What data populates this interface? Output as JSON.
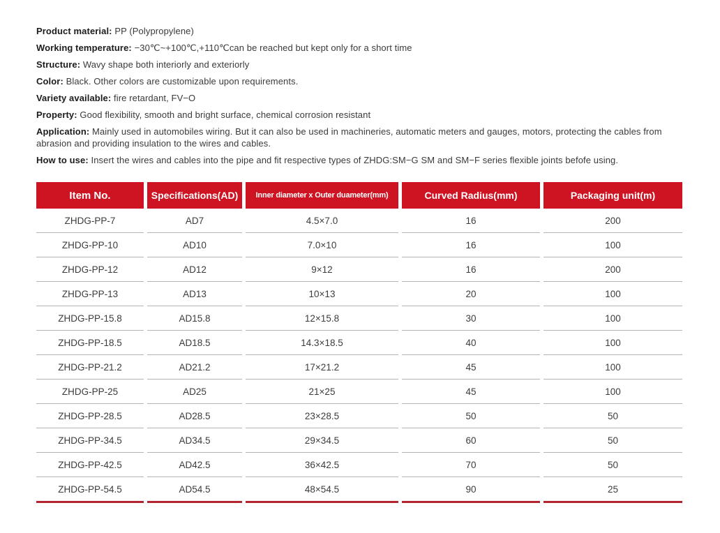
{
  "specs": [
    {
      "label": "Product material:",
      "text": "PP (Polypropylene)"
    },
    {
      "label": "Working temperature:",
      "text": "−30℃~+100℃,+110℃can be reached but kept only for a short time"
    },
    {
      "label": "Structure:",
      "text": "Wavy shape both interiorly and exteriorly"
    },
    {
      "label": "Color:",
      "text": "Black. Other colors are customizable upon requirements."
    },
    {
      "label": "Variety available:",
      "text": "fire retardant, FV−O"
    },
    {
      "label": "Property:",
      "text": "Good flexibility, smooth and bright surface, chemical corrosion resistant"
    },
    {
      "label": "Application:",
      "text": "Mainly used in automobiles wiring. But it can also be used in machineries, automatic meters and gauges, motors, protecting the cables from abrasion and providing insulation to the wires and cables."
    },
    {
      "label": "How to use:",
      "text": "Insert the wires and cables into the pipe and fit respective types of ZHDG:SM−G SM and SM−F series flexible joints befofe using."
    }
  ],
  "table": {
    "headers": [
      "Item No.",
      "Specifications(AD)",
      "Inner diameter x Outer duameter(mm)",
      "Curved Radius(mm)",
      "Packaging unit(m)"
    ],
    "rows": [
      [
        "ZHDG-PP-7",
        "AD7",
        "4.5×7.0",
        "16",
        "200"
      ],
      [
        "ZHDG-PP-10",
        "AD10",
        "7.0×10",
        "16",
        "100"
      ],
      [
        "ZHDG-PP-12",
        "AD12",
        "9×12",
        "16",
        "200"
      ],
      [
        "ZHDG-PP-13",
        "AD13",
        "10×13",
        "20",
        "100"
      ],
      [
        "ZHDG-PP-15.8",
        "AD15.8",
        "12×15.8",
        "30",
        "100"
      ],
      [
        "ZHDG-PP-18.5",
        "AD18.5",
        "14.3×18.5",
        "40",
        "100"
      ],
      [
        "ZHDG-PP-21.2",
        "AD21.2",
        "17×21.2",
        "45",
        "100"
      ],
      [
        "ZHDG-PP-25",
        "AD25",
        "21×25",
        "45",
        "100"
      ],
      [
        "ZHDG-PP-28.5",
        "AD28.5",
        "23×28.5",
        "50",
        "50"
      ],
      [
        "ZHDG-PP-34.5",
        "AD34.5",
        "29×34.5",
        "60",
        "50"
      ],
      [
        "ZHDG-PP-42.5",
        "AD42.5",
        "36×42.5",
        "70",
        "50"
      ],
      [
        "ZHDG-PP-54.5",
        "AD54.5",
        "48×54.5",
        "90",
        "25"
      ]
    ],
    "colors": {
      "header_bg": "#ce1422",
      "header_text": "#ffffff",
      "bottom_line": "#b32431",
      "divider": "#b3b3b3"
    }
  }
}
